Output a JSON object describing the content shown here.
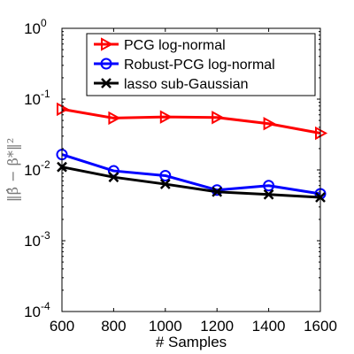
{
  "chart_data": {
    "type": "line",
    "title": "",
    "xlabel": "# Samples",
    "ylabel": "‖β̂ − β*‖²",
    "yscale": "log",
    "xlim": [
      600,
      1600
    ],
    "ylim": [
      0.0001,
      1
    ],
    "x": [
      600,
      800,
      1000,
      1200,
      1400,
      1600
    ],
    "x_tick_labels": [
      "600",
      "800",
      "1000",
      "1200",
      "1400",
      "1600"
    ],
    "y_ticks": [
      0.0001,
      0.001,
      0.01,
      0.1,
      1
    ],
    "y_tick_labels": [
      {
        "base": "10",
        "exp": "-4"
      },
      {
        "base": "10",
        "exp": "-3"
      },
      {
        "base": "10",
        "exp": "-2"
      },
      {
        "base": "10",
        "exp": "-1"
      },
      {
        "base": "10",
        "exp": "0"
      }
    ],
    "grid": false,
    "legend_position": "top-right",
    "series": [
      {
        "name": "PCG log-normal",
        "color": "#ff0000",
        "marker": "triangle-right",
        "values": [
          0.072,
          0.054,
          0.056,
          0.055,
          0.045,
          0.033
        ]
      },
      {
        "name": "Robust-PCG log-normal",
        "color": "#0000ff",
        "marker": "circle",
        "values": [
          0.0165,
          0.0097,
          0.0083,
          0.0052,
          0.006,
          0.0046
        ]
      },
      {
        "name": "lasso sub-Gaussian",
        "color": "#000000",
        "marker": "x",
        "values": [
          0.011,
          0.0079,
          0.0063,
          0.0049,
          0.0045,
          0.0041
        ]
      }
    ]
  }
}
